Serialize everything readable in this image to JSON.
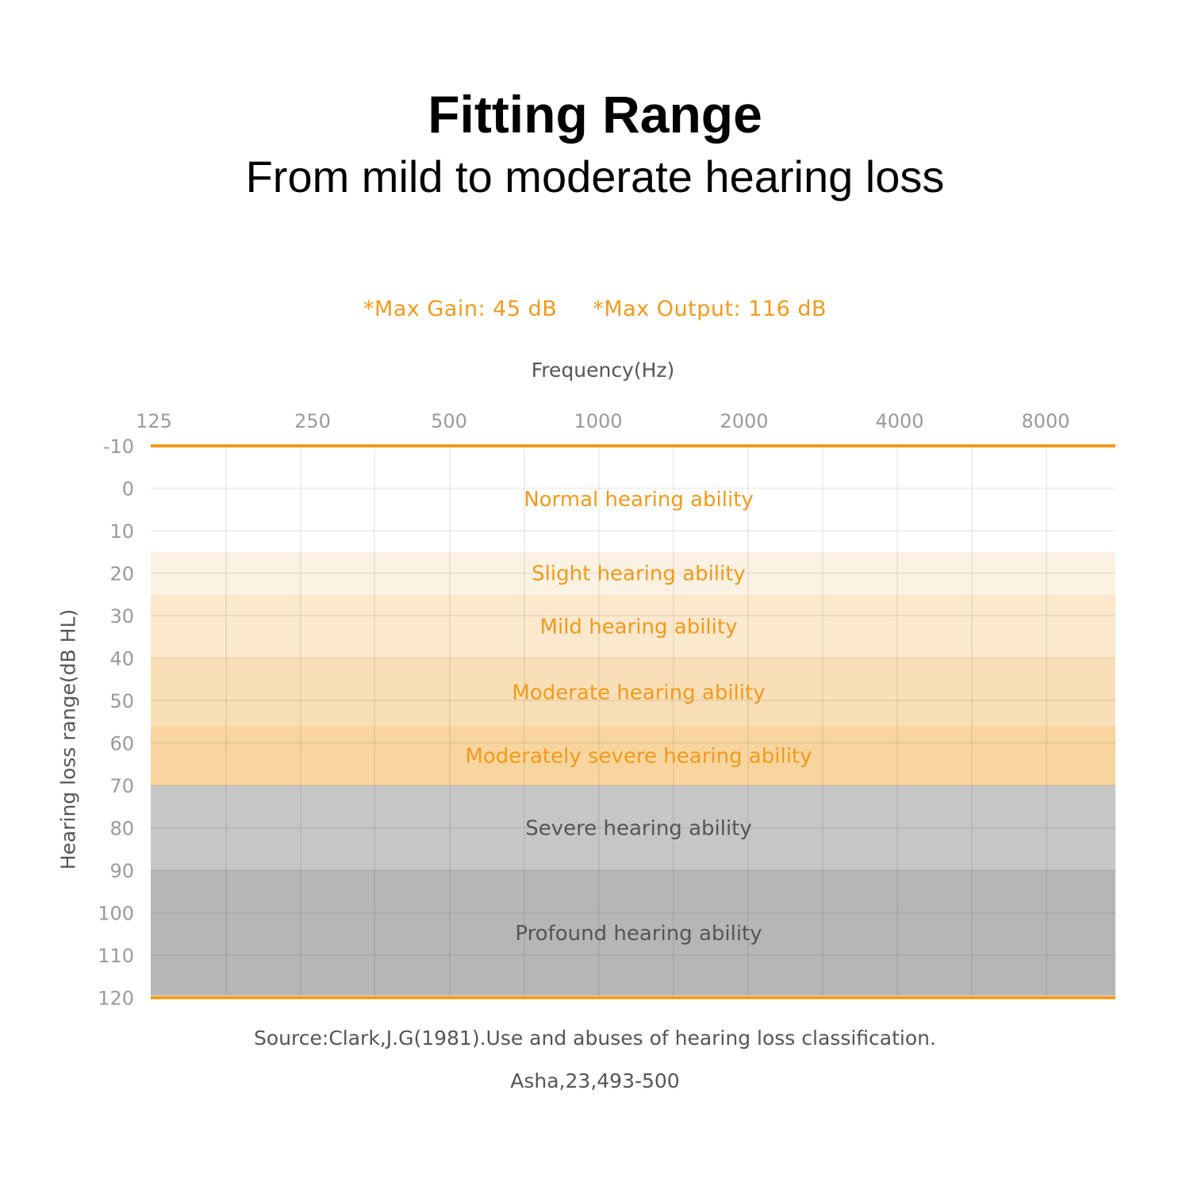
{
  "header": {
    "title": "Fitting Range",
    "subtitle": "From mild to moderate hearing loss"
  },
  "specs": {
    "max_gain": "*Max Gain: 45 dB",
    "max_output": "*Max Output: 116 dB"
  },
  "source": {
    "line1": "Source:Clark,J.G(1981).Use and abuses of hearing loss classification.",
    "line2": "Asha,23,493-500"
  },
  "colors": {
    "accent": "#f29a1c",
    "band_text_orange": "#f29a1c",
    "band_text_gray": "#555555",
    "axis_text": "#9a9a9a"
  },
  "chart_data": {
    "type": "area",
    "xlabel": "Frequency(Hz)",
    "ylabel": "Hearing loss range(dB HL)",
    "x_ticks": [
      "125",
      "250",
      "500",
      "1000",
      "2000",
      "4000",
      "8000"
    ],
    "y_ticks": [
      "-10",
      "0",
      "10",
      "20",
      "30",
      "40",
      "50",
      "60",
      "70",
      "80",
      "90",
      "100",
      "110",
      "120"
    ],
    "ylim": [
      -10,
      120
    ],
    "y_inverted": true,
    "grid": true,
    "bands": [
      {
        "name": "Normal hearing ability",
        "from": -10,
        "to": 15,
        "fill": "#ffffff",
        "label_color": "#f29a1c"
      },
      {
        "name": "Slight hearing ability",
        "from": 15,
        "to": 25,
        "fill": "#fcf2e3",
        "label_color": "#f29a1c"
      },
      {
        "name": "Mild hearing ability",
        "from": 25,
        "to": 40,
        "fill": "#fbe8cd",
        "label_color": "#f29a1c"
      },
      {
        "name": "Moderate hearing ability",
        "from": 40,
        "to": 56,
        "fill": "#f9dfb7",
        "label_color": "#f29a1c"
      },
      {
        "name": "Moderately severe hearing ability",
        "from": 56,
        "to": 70,
        "fill": "#f8d59e",
        "label_color": "#f29a1c"
      },
      {
        "name": "Severe hearing ability",
        "from": 70,
        "to": 90,
        "fill": "#c6c6c6",
        "label_color": "#555555"
      },
      {
        "name": "Profound hearing ability",
        "from": 90,
        "to": 119.5,
        "fill": "#b6b6b6",
        "label_color": "#555555"
      }
    ],
    "boundary_lines": [
      -10,
      120
    ]
  }
}
